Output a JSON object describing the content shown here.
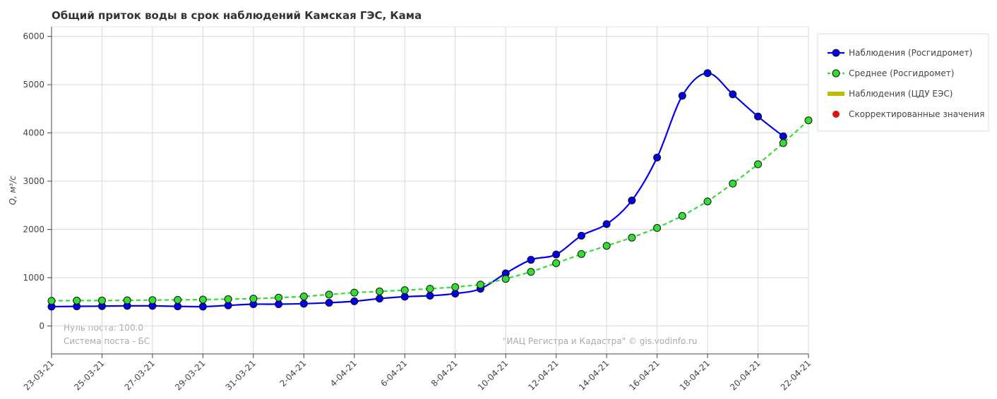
{
  "chart_data": {
    "type": "line",
    "title": "Общий приток воды в срок наблюдений Камская ГЭС,  Кама",
    "y_label": "Q, м³/с",
    "x": [
      "23-03-21",
      "24-03-21",
      "25-03-21",
      "26-03-21",
      "27-03-21",
      "28-03-21",
      "29-03-21",
      "30-03-21",
      "31-03-21",
      "1-04-21",
      "2-04-21",
      "3-04-21",
      "4-04-21",
      "5-04-21",
      "6-04-21",
      "7-04-21",
      "8-04-21",
      "9-04-21",
      "10-04-21",
      "11-04-21",
      "12-04-21",
      "13-04-21",
      "14-04-21",
      "15-04-21",
      "16-04-21",
      "17-04-21",
      "18-04-21",
      "19-04-21",
      "20-04-21",
      "21-04-21",
      "22-04-21"
    ],
    "series": [
      {
        "name": "Наблюдения (Росгидромет)",
        "color": "#0000ee",
        "dashed": false,
        "smooth": true,
        "values": [
          400,
          405,
          410,
          415,
          415,
          405,
          400,
          425,
          450,
          450,
          460,
          480,
          510,
          565,
          605,
          625,
          670,
          770,
          1090,
          1370,
          1480,
          1870,
          2110,
          2600,
          3490,
          4770,
          5240,
          4800,
          4340,
          3930,
          null
        ]
      },
      {
        "name": "Среднее (Росгидромет)",
        "color": "#33dd33",
        "dashed": true,
        "smooth": false,
        "values": [
          520,
          525,
          525,
          530,
          535,
          540,
          545,
          555,
          565,
          585,
          610,
          650,
          690,
          715,
          740,
          770,
          805,
          855,
          975,
          1120,
          1300,
          1490,
          1660,
          1830,
          2030,
          2280,
          2580,
          2950,
          3350,
          3790,
          4260
        ]
      }
    ],
    "extra_legend": [
      {
        "name": "Наблюдения (ЦДУ ЕЭС)",
        "color": "#bbbb00",
        "marker": "bar"
      },
      {
        "name": "Скорректированные значения",
        "color": "#dd1111",
        "marker": "dot"
      }
    ],
    "xlim": [
      "23-03-21",
      "22-04-21"
    ],
    "xticks": [
      "23-03-21",
      "25-03-21",
      "27-03-21",
      "29-03-21",
      "31-03-21",
      "2-04-21",
      "4-04-21",
      "6-04-21",
      "8-04-21",
      "10-04-21",
      "12-04-21",
      "14-04-21",
      "16-04-21",
      "18-04-21",
      "20-04-21",
      "22-04-21"
    ],
    "ylim": [
      -580,
      6200
    ],
    "yticks": [
      0,
      1000,
      2000,
      3000,
      4000,
      5000,
      6000
    ],
    "grid": true,
    "notes": [
      "Нуль поста: 100.0",
      "Система поста - БС"
    ],
    "credit": "\"ИАЦ Регистра и Кадастра\" © gis.vodinfo.ru"
  }
}
